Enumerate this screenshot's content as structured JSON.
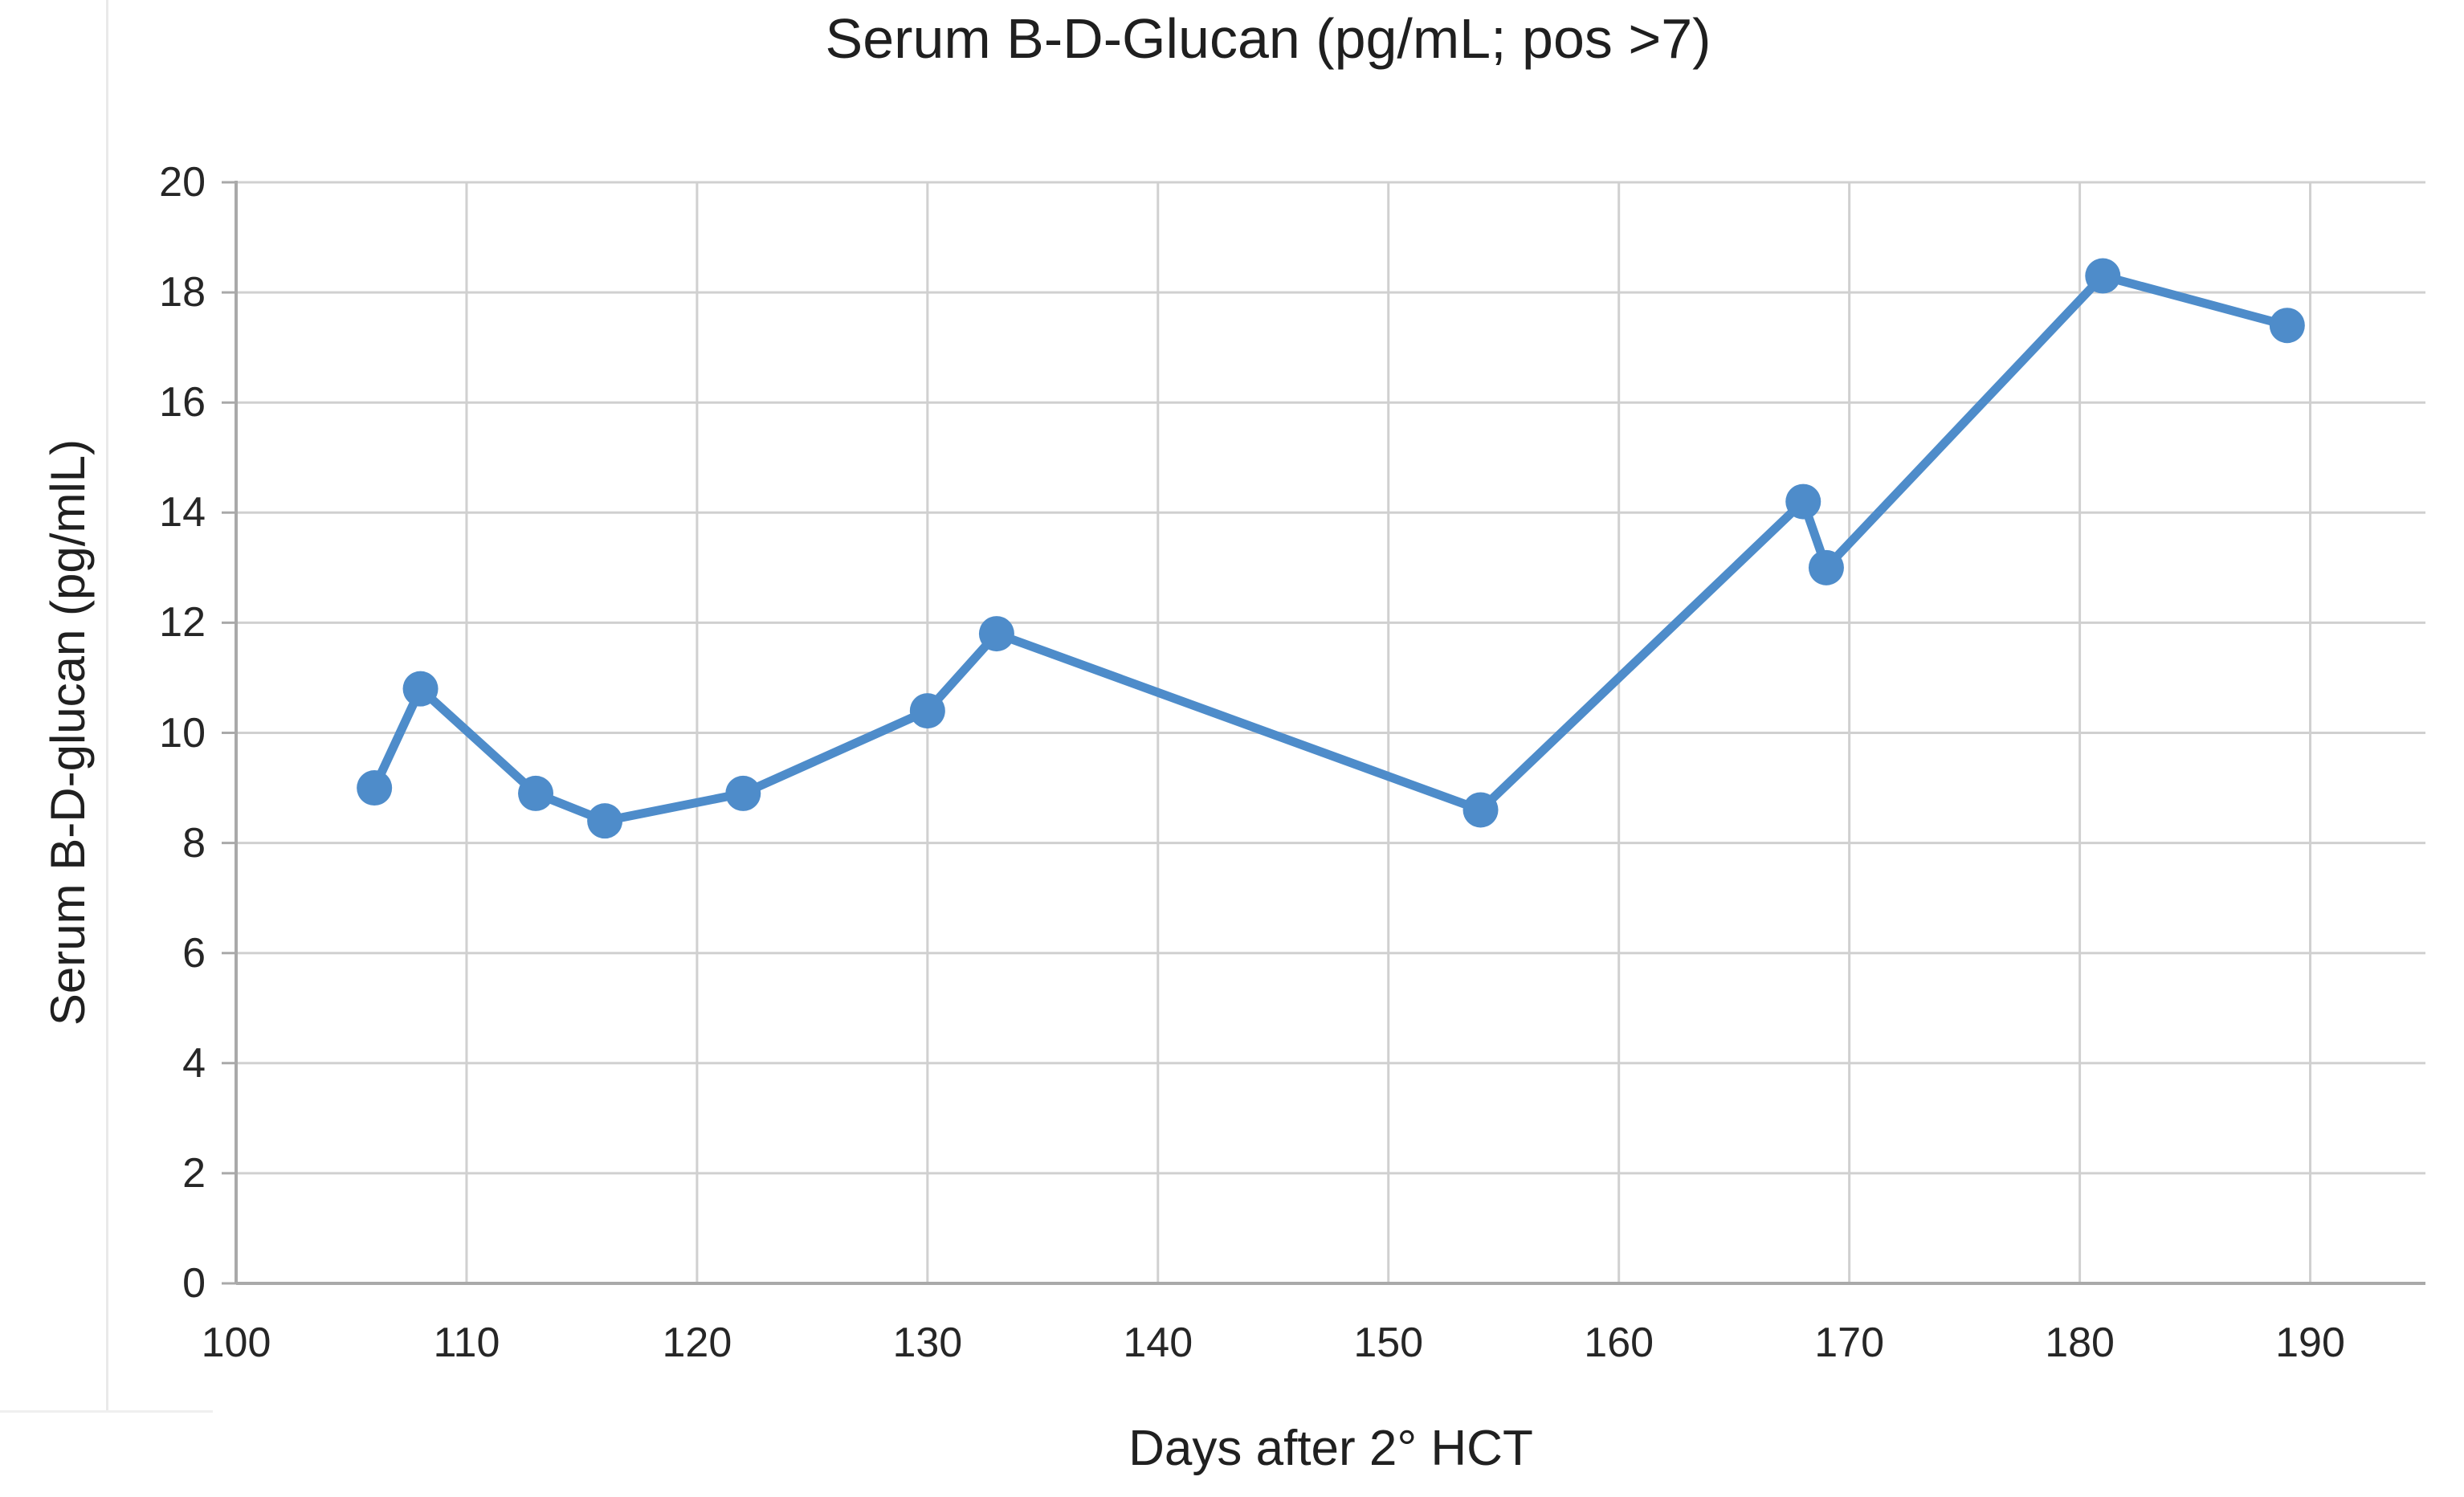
{
  "chart": {
    "title": "Serum B-D-Glucan (pg/mL; pos >7)",
    "x_axis_title": "Days after 2° HCT",
    "y_axis_title": "Serum B-D-glucan (pg/mlL)"
  },
  "chart_data": {
    "type": "line",
    "title": "Serum B-D-Glucan (pg/mL; pos >7)",
    "xlabel": "Days after 2° HCT",
    "ylabel": "Serum B-D-glucan (pg/mlL)",
    "x": [
      106,
      108,
      113,
      116,
      122,
      130,
      133,
      154,
      168,
      169,
      181,
      189
    ],
    "y": [
      9.0,
      10.8,
      8.9,
      8.4,
      8.9,
      10.4,
      11.8,
      8.6,
      14.2,
      13.0,
      18.3,
      17.4
    ],
    "xlim": [
      100,
      195
    ],
    "ylim": [
      0,
      20
    ],
    "x_ticks": [
      100,
      110,
      120,
      130,
      140,
      150,
      160,
      170,
      180,
      190
    ],
    "y_ticks": [
      0,
      2,
      4,
      6,
      8,
      10,
      12,
      14,
      16,
      18,
      20
    ],
    "grid": true,
    "legend": "none",
    "series_name": "Serum B-D-Glucan",
    "positivity_threshold": 7
  },
  "colors": {
    "series": "#4E8CCA",
    "gridline": "#d0d0d0",
    "axis_line": "#a9a9a9",
    "text": "#262626"
  }
}
